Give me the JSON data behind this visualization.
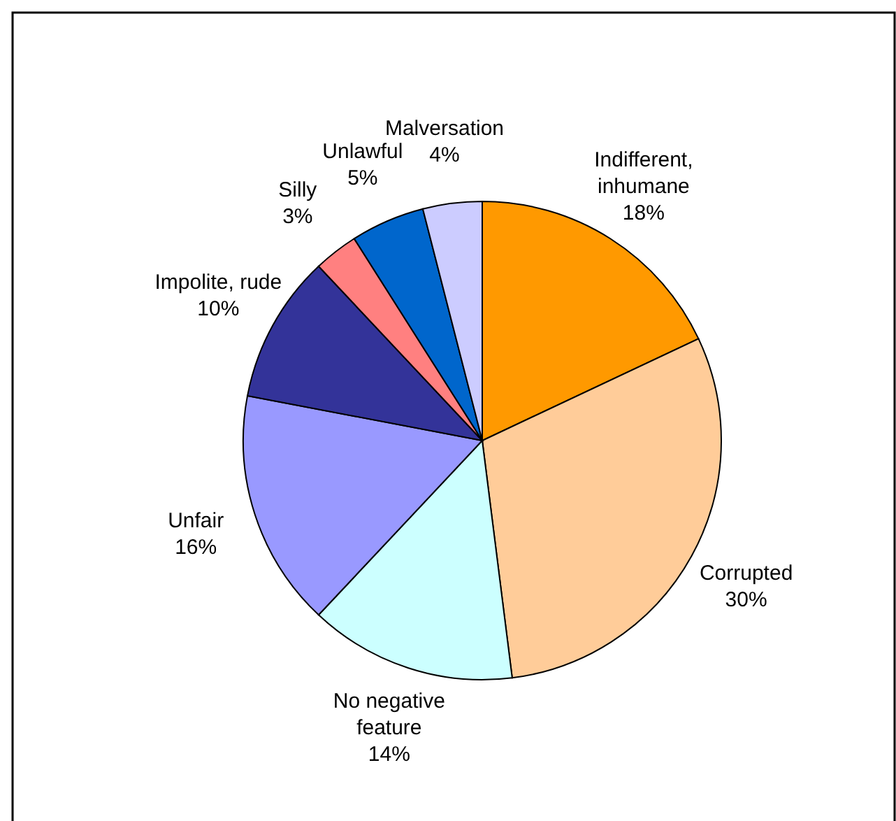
{
  "chart_data": {
    "type": "pie",
    "categories": [
      "Indifferent, inhumane",
      "Corrupted",
      "No negative feature",
      "Unfair",
      "Impolite, rude",
      "Silly",
      "Unlawful",
      "Malversation"
    ],
    "values": [
      18,
      30,
      14,
      16,
      10,
      3,
      5,
      4
    ],
    "value_labels": [
      "18%",
      "30%",
      "14%",
      "16%",
      "10%",
      "3%",
      "5%",
      "4%"
    ],
    "colors": [
      "#ff9900",
      "#ffcc99",
      "#ccffff",
      "#9999ff",
      "#333399",
      "#ff8080",
      "#0066cc",
      "#ccccff"
    ]
  }
}
